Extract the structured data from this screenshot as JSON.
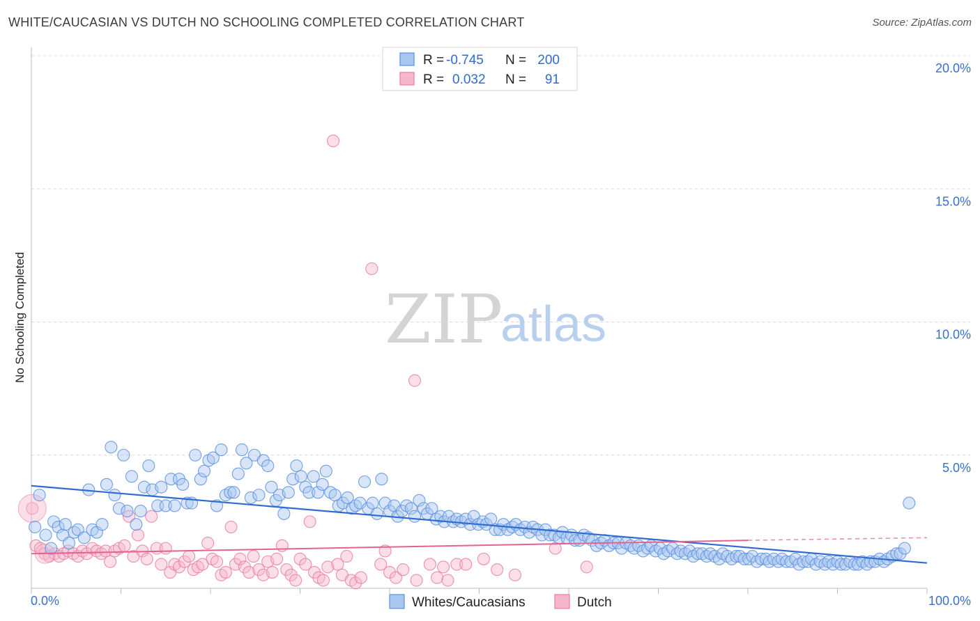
{
  "title": "WHITE/CAUCASIAN VS DUTCH NO SCHOOLING COMPLETED CORRELATION CHART",
  "source": "Source: ZipAtlas.com",
  "watermark": {
    "zip": "ZIP",
    "atlas": "atlas"
  },
  "colors": {
    "blue": "#5b8fe0",
    "blue_fill": "#a9c6f0",
    "pink": "#e97ea0",
    "pink_fill": "#f6b6cb",
    "grid": "#d9d9d9"
  },
  "legend": {
    "r_label": "R =",
    "n_label": "N =",
    "series": [
      {
        "r": "-0.745",
        "n": "200"
      },
      {
        "r": "0.032",
        "n": "91"
      }
    ]
  },
  "chart_data": {
    "type": "scatter",
    "title": "WHITE/CAUCASIAN VS DUTCH NO SCHOOLING COMPLETED CORRELATION CHART",
    "xlabel": "",
    "ylabel": "No Schooling Completed",
    "xlim": [
      0,
      100
    ],
    "ylim": [
      0,
      20
    ],
    "x_tick_labels": [
      "0.0%",
      "100.0%"
    ],
    "y_ticks": [
      5,
      10,
      15,
      20
    ],
    "y_tick_labels": [
      "5.0%",
      "10.0%",
      "15.0%",
      "20.0%"
    ],
    "series": [
      {
        "name": "Whites/Caucasians",
        "trend": {
          "x": [
            0,
            100
          ],
          "y": [
            3.85,
            0.95
          ]
        },
        "points": [
          [
            0.4,
            2.3
          ],
          [
            0.9,
            3.5
          ],
          [
            1.6,
            2.0
          ],
          [
            2.2,
            1.5
          ],
          [
            2.5,
            2.5
          ],
          [
            3.0,
            2.3
          ],
          [
            3.5,
            2.0
          ],
          [
            3.8,
            2.4
          ],
          [
            4.2,
            1.7
          ],
          [
            4.8,
            2.1
          ],
          [
            5.2,
            2.2
          ],
          [
            5.9,
            1.9
          ],
          [
            6.4,
            3.7
          ],
          [
            6.8,
            2.2
          ],
          [
            7.3,
            2.1
          ],
          [
            7.9,
            2.4
          ],
          [
            8.4,
            3.9
          ],
          [
            8.9,
            5.3
          ],
          [
            9.3,
            3.5
          ],
          [
            9.8,
            3.0
          ],
          [
            10.3,
            5.0
          ],
          [
            10.7,
            2.9
          ],
          [
            11.2,
            4.2
          ],
          [
            11.7,
            2.4
          ],
          [
            12.2,
            2.9
          ],
          [
            12.6,
            3.8
          ],
          [
            13.1,
            4.6
          ],
          [
            13.5,
            3.7
          ],
          [
            14.1,
            3.1
          ],
          [
            14.5,
            3.8
          ],
          [
            15.0,
            3.1
          ],
          [
            15.6,
            4.1
          ],
          [
            16.0,
            3.1
          ],
          [
            16.5,
            4.1
          ],
          [
            16.9,
            3.9
          ],
          [
            17.4,
            3.2
          ],
          [
            17.9,
            3.2
          ],
          [
            18.3,
            5.0
          ],
          [
            18.9,
            4.1
          ],
          [
            19.3,
            4.4
          ],
          [
            19.8,
            4.8
          ],
          [
            20.3,
            4.9
          ],
          [
            20.7,
            3.1
          ],
          [
            21.2,
            5.2
          ],
          [
            21.7,
            3.5
          ],
          [
            22.2,
            3.6
          ],
          [
            22.6,
            3.6
          ],
          [
            23.1,
            4.3
          ],
          [
            23.5,
            5.2
          ],
          [
            24.0,
            4.7
          ],
          [
            24.5,
            3.4
          ],
          [
            24.9,
            5.0
          ],
          [
            25.4,
            3.5
          ],
          [
            25.9,
            4.8
          ],
          [
            26.4,
            4.6
          ],
          [
            26.8,
            3.8
          ],
          [
            27.3,
            3.3
          ],
          [
            27.7,
            3.5
          ],
          [
            28.2,
            2.8
          ],
          [
            28.7,
            3.6
          ],
          [
            29.2,
            4.1
          ],
          [
            29.6,
            4.6
          ],
          [
            30.1,
            4.2
          ],
          [
            30.6,
            3.8
          ],
          [
            31.0,
            3.6
          ],
          [
            31.5,
            4.2
          ],
          [
            32.0,
            3.6
          ],
          [
            32.5,
            3.9
          ],
          [
            32.9,
            4.4
          ],
          [
            33.4,
            3.6
          ],
          [
            33.9,
            3.5
          ],
          [
            34.3,
            3.1
          ],
          [
            34.8,
            3.2
          ],
          [
            35.3,
            3.4
          ],
          [
            35.8,
            3.0
          ],
          [
            36.2,
            3.1
          ],
          [
            36.7,
            3.2
          ],
          [
            37.2,
            4.0
          ],
          [
            37.6,
            3.0
          ],
          [
            38.1,
            3.2
          ],
          [
            38.6,
            2.8
          ],
          [
            39.1,
            4.1
          ],
          [
            39.5,
            3.2
          ],
          [
            40.0,
            2.9
          ],
          [
            40.5,
            3.1
          ],
          [
            40.9,
            2.7
          ],
          [
            41.4,
            2.9
          ],
          [
            41.9,
            3.1
          ],
          [
            42.4,
            3.0
          ],
          [
            42.8,
            2.7
          ],
          [
            43.3,
            3.3
          ],
          [
            43.8,
            3.0
          ],
          [
            44.2,
            2.8
          ],
          [
            44.7,
            3.0
          ],
          [
            45.2,
            2.6
          ],
          [
            45.7,
            2.7
          ],
          [
            46.1,
            2.5
          ],
          [
            46.6,
            2.7
          ],
          [
            47.1,
            2.5
          ],
          [
            47.5,
            2.6
          ],
          [
            48.0,
            2.5
          ],
          [
            48.5,
            2.6
          ],
          [
            49.0,
            2.4
          ],
          [
            49.4,
            2.7
          ],
          [
            49.9,
            2.4
          ],
          [
            50.4,
            2.5
          ],
          [
            50.8,
            2.4
          ],
          [
            51.3,
            2.6
          ],
          [
            51.8,
            2.2
          ],
          [
            52.3,
            2.2
          ],
          [
            52.7,
            2.4
          ],
          [
            53.2,
            2.2
          ],
          [
            53.7,
            2.3
          ],
          [
            54.1,
            2.4
          ],
          [
            54.6,
            2.2
          ],
          [
            55.1,
            2.3
          ],
          [
            55.6,
            2.1
          ],
          [
            56.0,
            2.3
          ],
          [
            56.5,
            2.2
          ],
          [
            57.0,
            2.0
          ],
          [
            57.4,
            2.2
          ],
          [
            57.9,
            2.0
          ],
          [
            58.4,
            2.0
          ],
          [
            58.9,
            1.9
          ],
          [
            59.3,
            2.1
          ],
          [
            59.8,
            1.9
          ],
          [
            60.3,
            2.0
          ],
          [
            60.7,
            1.8
          ],
          [
            61.2,
            1.8
          ],
          [
            61.7,
            2.0
          ],
          [
            62.2,
            1.9
          ],
          [
            62.6,
            1.8
          ],
          [
            63.1,
            1.6
          ],
          [
            63.6,
            1.7
          ],
          [
            64.0,
            1.8
          ],
          [
            64.5,
            1.6
          ],
          [
            65.0,
            1.7
          ],
          [
            65.5,
            1.7
          ],
          [
            65.9,
            1.5
          ],
          [
            66.4,
            1.7
          ],
          [
            66.9,
            1.6
          ],
          [
            67.3,
            1.5
          ],
          [
            67.8,
            1.6
          ],
          [
            68.3,
            1.4
          ],
          [
            68.8,
            1.5
          ],
          [
            69.2,
            1.6
          ],
          [
            69.7,
            1.4
          ],
          [
            70.2,
            1.5
          ],
          [
            70.6,
            1.3
          ],
          [
            71.1,
            1.4
          ],
          [
            71.6,
            1.5
          ],
          [
            72.1,
            1.3
          ],
          [
            72.5,
            1.4
          ],
          [
            73.0,
            1.3
          ],
          [
            73.5,
            1.4
          ],
          [
            73.9,
            1.2
          ],
          [
            74.4,
            1.3
          ],
          [
            74.9,
            1.3
          ],
          [
            75.4,
            1.2
          ],
          [
            75.8,
            1.3
          ],
          [
            76.3,
            1.2
          ],
          [
            76.8,
            1.1
          ],
          [
            77.2,
            1.3
          ],
          [
            77.7,
            1.2
          ],
          [
            78.2,
            1.1
          ],
          [
            78.7,
            1.2
          ],
          [
            79.1,
            1.2
          ],
          [
            79.6,
            1.1
          ],
          [
            80.1,
            1.1
          ],
          [
            80.5,
            1.2
          ],
          [
            81.0,
            1.0
          ],
          [
            81.5,
            1.1
          ],
          [
            82.0,
            1.1
          ],
          [
            82.4,
            1.0
          ],
          [
            82.9,
            1.1
          ],
          [
            83.4,
            1.0
          ],
          [
            83.8,
            1.1
          ],
          [
            84.3,
            1.0
          ],
          [
            84.8,
            1.0
          ],
          [
            85.3,
            1.1
          ],
          [
            85.7,
            0.9
          ],
          [
            86.2,
            1.0
          ],
          [
            86.7,
            1.0
          ],
          [
            87.1,
            1.1
          ],
          [
            87.6,
            0.9
          ],
          [
            88.1,
            1.0
          ],
          [
            88.6,
            0.9
          ],
          [
            89.0,
            1.0
          ],
          [
            89.5,
            0.9
          ],
          [
            90.0,
            1.0
          ],
          [
            90.4,
            0.9
          ],
          [
            90.9,
            0.9
          ],
          [
            91.4,
            1.0
          ],
          [
            91.9,
            0.9
          ],
          [
            92.3,
            0.9
          ],
          [
            92.8,
            1.0
          ],
          [
            93.3,
            0.9
          ],
          [
            93.7,
            1.0
          ],
          [
            94.2,
            1.0
          ],
          [
            94.7,
            1.1
          ],
          [
            95.2,
            1.0
          ],
          [
            95.6,
            1.1
          ],
          [
            96.1,
            1.2
          ],
          [
            96.6,
            1.3
          ],
          [
            97.0,
            1.3
          ],
          [
            97.5,
            1.5
          ],
          [
            98.0,
            3.2
          ]
        ]
      },
      {
        "name": "Dutch",
        "trend": {
          "x": [
            0,
            80
          ],
          "y": [
            1.3,
            1.8
          ]
        },
        "trend_dashed": {
          "x": [
            80,
            100
          ],
          "y": [
            1.8,
            1.9
          ]
        },
        "points": [
          [
            0.1,
            3.0
          ],
          [
            0.5,
            1.6
          ],
          [
            1.0,
            1.5
          ],
          [
            1.5,
            1.3
          ],
          [
            2.0,
            1.2
          ],
          [
            2.6,
            1.3
          ],
          [
            3.1,
            1.2
          ],
          [
            3.6,
            1.3
          ],
          [
            4.1,
            1.4
          ],
          [
            4.7,
            1.3
          ],
          [
            5.2,
            1.2
          ],
          [
            5.7,
            1.4
          ],
          [
            6.2,
            1.3
          ],
          [
            6.8,
            1.5
          ],
          [
            7.3,
            1.4
          ],
          [
            7.8,
            1.3
          ],
          [
            8.3,
            1.4
          ],
          [
            8.8,
            1.0
          ],
          [
            9.3,
            1.4
          ],
          [
            9.8,
            1.5
          ],
          [
            10.4,
            1.6
          ],
          [
            10.9,
            2.7
          ],
          [
            11.4,
            1.2
          ],
          [
            11.9,
            2.0
          ],
          [
            12.4,
            1.4
          ],
          [
            12.9,
            1.1
          ],
          [
            13.4,
            2.7
          ],
          [
            14.0,
            1.5
          ],
          [
            14.5,
            0.9
          ],
          [
            15.0,
            1.5
          ],
          [
            15.5,
            0.6
          ],
          [
            16.0,
            0.9
          ],
          [
            16.5,
            0.8
          ],
          [
            17.1,
            1.0
          ],
          [
            17.6,
            1.2
          ],
          [
            18.1,
            0.7
          ],
          [
            18.6,
            0.8
          ],
          [
            19.1,
            0.9
          ],
          [
            19.7,
            1.7
          ],
          [
            20.2,
            1.1
          ],
          [
            20.7,
            1.0
          ],
          [
            21.2,
            0.5
          ],
          [
            21.7,
            0.6
          ],
          [
            22.3,
            2.3
          ],
          [
            22.8,
            0.9
          ],
          [
            23.3,
            1.1
          ],
          [
            23.8,
            0.8
          ],
          [
            24.3,
            0.6
          ],
          [
            24.8,
            1.2
          ],
          [
            25.4,
            0.7
          ],
          [
            25.9,
            0.5
          ],
          [
            26.4,
            1.0
          ],
          [
            26.9,
            0.6
          ],
          [
            27.4,
            1.1
          ],
          [
            28.0,
            1.6
          ],
          [
            28.5,
            0.7
          ],
          [
            29.0,
            0.5
          ],
          [
            29.5,
            0.3
          ],
          [
            30.0,
            1.1
          ],
          [
            30.6,
            0.9
          ],
          [
            31.1,
            2.5
          ],
          [
            31.6,
            0.6
          ],
          [
            32.1,
            0.4
          ],
          [
            32.6,
            0.3
          ],
          [
            33.1,
            0.8
          ],
          [
            33.7,
            16.8
          ],
          [
            34.2,
            0.9
          ],
          [
            34.7,
            0.5
          ],
          [
            35.2,
            1.2
          ],
          [
            35.7,
            0.3
          ],
          [
            36.2,
            0.2
          ],
          [
            36.8,
            0.4
          ],
          [
            38.0,
            12.0
          ],
          [
            39.0,
            0.9
          ],
          [
            39.5,
            1.4
          ],
          [
            40.0,
            0.6
          ],
          [
            40.7,
            0.4
          ],
          [
            41.5,
            0.7
          ],
          [
            43.0,
            0.3
          ],
          [
            44.5,
            0.9
          ],
          [
            45.3,
            0.4
          ],
          [
            46.0,
            0.8
          ],
          [
            46.5,
            0.3
          ],
          [
            47.5,
            0.9
          ],
          [
            48.5,
            0.9
          ],
          [
            50.5,
            1.1
          ],
          [
            52.0,
            0.7
          ],
          [
            54.0,
            0.5
          ],
          [
            58.5,
            1.5
          ],
          [
            62.0,
            0.8
          ],
          [
            42.8,
            7.8
          ]
        ]
      }
    ]
  }
}
